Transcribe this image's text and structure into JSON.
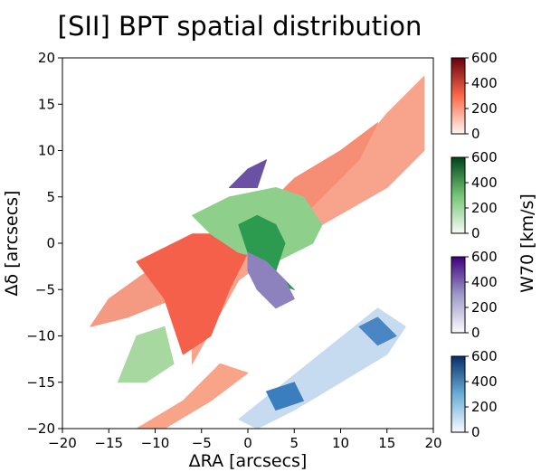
{
  "chart_data": {
    "type": "heatmap",
    "title": "[SII] BPT spatial distribution",
    "xlabel": "ΔRA [arcsecs]",
    "ylabel": "Δδ [arcsecs]",
    "xlim": [
      -20,
      20
    ],
    "ylim": [
      -20,
      20
    ],
    "xticks": [
      "−20",
      "−15",
      "−10",
      "−5",
      "0",
      "5",
      "10",
      "15",
      "20"
    ],
    "yticks": [
      "20",
      "15",
      "10",
      "5",
      "0",
      "−5",
      "−10",
      "−15",
      "−20"
    ],
    "colorbar_label": "W70 [km/s]",
    "colorbars": [
      {
        "cmap": "Reds",
        "range": [
          0,
          600
        ],
        "ticks": [
          "600",
          "400",
          "200",
          "0"
        ],
        "low": "#fff5f0",
        "mid": "#fb6a4a",
        "high": "#67000d"
      },
      {
        "cmap": "Greens",
        "range": [
          0,
          600
        ],
        "ticks": [
          "600",
          "400",
          "200",
          "0"
        ],
        "low": "#f7fcf5",
        "mid": "#74c476",
        "high": "#00441b"
      },
      {
        "cmap": "Purples",
        "range": [
          0,
          600
        ],
        "ticks": [
          "600",
          "400",
          "200",
          "0"
        ],
        "low": "#fcfbfd",
        "mid": "#9e9ac8",
        "high": "#3f007d"
      },
      {
        "cmap": "Blues",
        "range": [
          0,
          600
        ],
        "ticks": [
          "600",
          "400",
          "200",
          "0"
        ],
        "low": "#f7fbff",
        "mid": "#6baed6",
        "high": "#08306b"
      }
    ],
    "regions": [
      {
        "class": "red",
        "shape": "polygon",
        "color": "#f8a48c",
        "points": [
          [
            -6,
            -9
          ],
          [
            -3,
            -4
          ],
          [
            3,
            3
          ],
          [
            10,
            8
          ],
          [
            15,
            14
          ],
          [
            19,
            18
          ],
          [
            19,
            10
          ],
          [
            15,
            6
          ],
          [
            8,
            2
          ],
          [
            3,
            -1
          ],
          [
            -1,
            -4
          ],
          [
            -6,
            -13
          ]
        ]
      },
      {
        "class": "red",
        "shape": "polygon",
        "color": "#f49a82",
        "points": [
          [
            -15,
            -6
          ],
          [
            -8,
            -1
          ],
          [
            -3,
            1
          ],
          [
            0,
            0
          ],
          [
            -2,
            -3
          ],
          [
            -8,
            -6
          ],
          [
            -13,
            -8
          ],
          [
            -17,
            -9
          ]
        ]
      },
      {
        "class": "red",
        "shape": "polygon",
        "color": "#f4604a",
        "points": [
          [
            -12,
            -2
          ],
          [
            -6,
            1
          ],
          [
            -1,
            1
          ],
          [
            0,
            -1
          ],
          [
            -2,
            -5
          ],
          [
            -4,
            -10
          ],
          [
            -7,
            -12
          ],
          [
            -9,
            -6
          ]
        ]
      },
      {
        "class": "red",
        "shape": "polygon",
        "color": "#f58e74",
        "points": [
          [
            1,
            3
          ],
          [
            5,
            7
          ],
          [
            10,
            10
          ],
          [
            14,
            13
          ],
          [
            12,
            9
          ],
          [
            7,
            4
          ],
          [
            3,
            1
          ]
        ]
      },
      {
        "class": "red",
        "shape": "polygon",
        "color": "#f7a489",
        "points": [
          [
            -12,
            -20
          ],
          [
            -7,
            -17
          ],
          [
            -3,
            -13
          ],
          [
            0,
            -14
          ],
          [
            -4,
            -17
          ],
          [
            -9,
            -20
          ]
        ]
      },
      {
        "class": "green",
        "shape": "polygon",
        "color": "#8fcf8c",
        "points": [
          [
            -6,
            3
          ],
          [
            -2,
            5
          ],
          [
            3,
            6
          ],
          [
            6,
            5
          ],
          [
            8,
            2
          ],
          [
            7,
            0
          ],
          [
            3,
            -2
          ],
          [
            -1,
            -1
          ],
          [
            -4,
            1
          ]
        ]
      },
      {
        "class": "green",
        "shape": "polygon",
        "color": "#2c9a4f",
        "points": [
          [
            -1,
            2
          ],
          [
            1,
            3
          ],
          [
            3,
            2
          ],
          [
            4,
            0
          ],
          [
            3,
            -3
          ],
          [
            5,
            -5
          ],
          [
            2,
            -4
          ],
          [
            0,
            -1
          ]
        ]
      },
      {
        "class": "green",
        "shape": "polygon",
        "color": "#a6d8a0",
        "points": [
          [
            -14,
            -15
          ],
          [
            -12,
            -10
          ],
          [
            -9,
            -9
          ],
          [
            -8,
            -13
          ],
          [
            -11,
            -15
          ]
        ]
      },
      {
        "class": "purple",
        "shape": "polygon",
        "color": "#8e82be",
        "points": [
          [
            0,
            -1
          ],
          [
            2,
            -2
          ],
          [
            4,
            -4
          ],
          [
            5,
            -6
          ],
          [
            3,
            -7
          ],
          [
            1,
            -5
          ],
          [
            0,
            -3
          ]
        ]
      },
      {
        "class": "purple",
        "shape": "polygon",
        "color": "#6a51a3",
        "points": [
          [
            -2,
            6
          ],
          [
            0,
            8
          ],
          [
            2,
            9
          ],
          [
            1,
            6
          ]
        ]
      },
      {
        "class": "blue",
        "shape": "polygon",
        "color": "#c6dbef",
        "points": [
          [
            -1,
            -19
          ],
          [
            4,
            -15
          ],
          [
            9,
            -11
          ],
          [
            14,
            -7
          ],
          [
            17,
            -9
          ],
          [
            15,
            -12
          ],
          [
            10,
            -15
          ],
          [
            5,
            -18
          ],
          [
            1,
            -20
          ]
        ]
      },
      {
        "class": "blue",
        "shape": "polygon",
        "color": "#4a86c4",
        "points": [
          [
            12,
            -9
          ],
          [
            14,
            -8
          ],
          [
            16,
            -10
          ],
          [
            14,
            -11
          ]
        ]
      },
      {
        "class": "blue",
        "shape": "polygon",
        "color": "#3b7ec0",
        "points": [
          [
            2,
            -16
          ],
          [
            5,
            -15
          ],
          [
            6,
            -17
          ],
          [
            3,
            -18
          ]
        ]
      }
    ]
  }
}
